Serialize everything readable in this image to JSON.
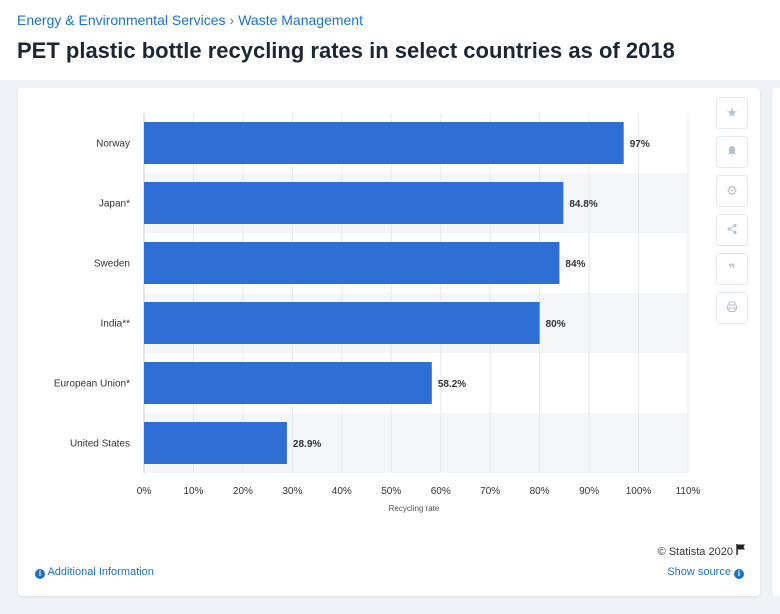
{
  "breadcrumb": {
    "category": "Energy & Environmental Services",
    "separator": "›",
    "subcategory": "Waste Management"
  },
  "title": "PET plastic bottle recycling rates in select countries as of 2018",
  "toolbar": {
    "icons": [
      "star-icon",
      "bell-icon",
      "gear-icon",
      "share-icon",
      "quote-icon",
      "print-icon"
    ],
    "glyphs": [
      "★",
      "🔔",
      "⚙",
      "<",
      "❞",
      "⎙"
    ]
  },
  "footer": {
    "copyright": "© Statista 2020",
    "additional_info": "Additional Information",
    "show_source": "Show source"
  },
  "colors": {
    "bar": "#2e6fd6",
    "accent": "#1a73c6",
    "stripe": "#f4f6f8"
  },
  "chart_data": {
    "type": "bar",
    "orientation": "horizontal",
    "categories": [
      "Norway",
      "Japan*",
      "Sweden",
      "India**",
      "European Union*",
      "United States"
    ],
    "values": [
      97,
      84.8,
      84,
      80,
      58.2,
      28.9
    ],
    "value_labels": [
      "97%",
      "84.8%",
      "84%",
      "80%",
      "58.2%",
      "28.9%"
    ],
    "xlabel": "Recycling rate",
    "ylabel": "",
    "xlim": [
      0,
      110
    ],
    "xticks": [
      0,
      10,
      20,
      30,
      40,
      50,
      60,
      70,
      80,
      90,
      100,
      110
    ],
    "tick_labels": [
      "0%",
      "10%",
      "20%",
      "30%",
      "40%",
      "50%",
      "60%",
      "70%",
      "80%",
      "90%",
      "100%",
      "110%"
    ],
    "grid": "vertical",
    "legend": "none"
  }
}
